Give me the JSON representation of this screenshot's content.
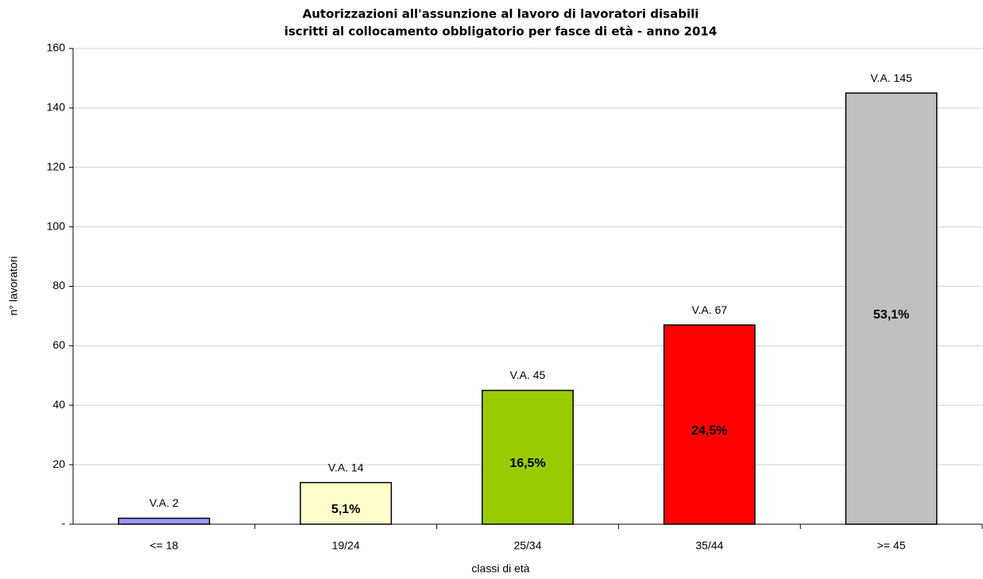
{
  "chart_data": {
    "type": "bar",
    "title": [
      "Autorizzazioni all'assunzione  al lavoro di lavoratori disabili",
      "iscritti al collocamento obbligatorio per fasce di età - anno 2014"
    ],
    "x_label": "classi di età",
    "y_label": "n° lavoratori",
    "categories": [
      "<= 18",
      "19/24",
      "25/34",
      "35/44",
      ">= 45"
    ],
    "values": [
      2,
      14,
      45,
      67,
      145
    ],
    "value_labels": [
      "V.A. 2",
      "V.A. 14",
      "V.A. 45",
      "V.A. 67",
      "V.A. 145"
    ],
    "share_labels": [
      null,
      "5,1%",
      "16,5%",
      "24,5%",
      "53,1%"
    ],
    "colors": [
      "#9999ff",
      "#ffffcc",
      "#99cc00",
      "#ff0000",
      "#c0c0c0"
    ],
    "ylim": [
      0,
      160
    ],
    "yticks": [
      {
        "value": 0,
        "label": "-"
      },
      20,
      40,
      60,
      80,
      100,
      120,
      140,
      160
    ],
    "grid": true
  }
}
